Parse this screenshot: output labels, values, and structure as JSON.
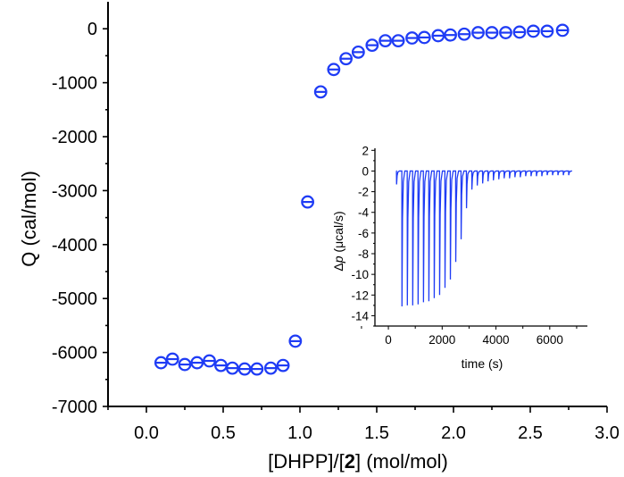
{
  "chart_data": [
    {
      "type": "scatter",
      "xlabel": "[DHPP]/[2] (mol/mol)",
      "xlabel_parts": [
        "[DHPP]/[",
        "2",
        "] (mol/mol)"
      ],
      "ylabel": "Q (cal/mol)",
      "xlim": [
        -0.25,
        3.0
      ],
      "ylim": [
        -7000,
        500
      ],
      "xticks": [
        "0.0",
        "0.5",
        "1.0",
        "1.5",
        "2.0",
        "2.5",
        "3.0"
      ],
      "yticks": [
        "0",
        "-1000",
        "-2000",
        "-3000",
        "-4000",
        "-5000",
        "-6000",
        "-7000"
      ],
      "marker": "circle-with-bar",
      "color": "#1f3cf5",
      "x": [
        0.095,
        0.17,
        0.25,
        0.33,
        0.41,
        0.485,
        0.56,
        0.64,
        0.72,
        0.81,
        0.89,
        0.97,
        1.05,
        1.135,
        1.22,
        1.3,
        1.38,
        1.47,
        1.556,
        1.64,
        1.73,
        1.81,
        1.9,
        1.98,
        2.07,
        2.16,
        2.25,
        2.34,
        2.43,
        2.52,
        2.61,
        2.71
      ],
      "y": [
        -6190,
        -6123,
        -6223,
        -6190,
        -6156,
        -6240,
        -6290,
        -6306,
        -6306,
        -6290,
        -6240,
        -5790,
        -3210,
        -1170,
        -755,
        -555,
        -433,
        -305,
        -222,
        -222,
        -171,
        -161,
        -128,
        -116,
        -100,
        -72,
        -72,
        -72,
        -62,
        -45,
        -45,
        -28
      ]
    },
    {
      "type": "line",
      "xlabel": "time (s)",
      "ylabel_parts": [
        "Δ",
        "p",
        " (μcal/s)"
      ],
      "ylabel": "Δp (μcal/s)",
      "xlim": [
        -500,
        7400
      ],
      "ylim": [
        -15,
        2.2
      ],
      "xticks": [
        "0",
        "2000",
        "4000",
        "6000"
      ],
      "yticks": [
        "2",
        "0",
        "-2",
        "-4",
        "-6",
        "-8",
        "-10",
        "-12",
        "-14"
      ],
      "color": "#1f3cf5",
      "injection_times": [
        300,
        500,
        700,
        900,
        1100,
        1300,
        1500,
        1700,
        1900,
        2100,
        2300,
        2500,
        2700,
        2900,
        3100,
        3300,
        3500,
        3700,
        3900,
        4100,
        4300,
        4500,
        4700,
        4900,
        5100,
        5300,
        5500,
        5700,
        5900,
        6100,
        6300,
        6500,
        6700
      ],
      "peak_minima": [
        -1.3,
        -13.1,
        -13.0,
        -13.0,
        -12.9,
        -12.7,
        -12.6,
        -12.3,
        -12.0,
        -11.3,
        -10.5,
        -8.8,
        -6.6,
        -3.6,
        -1.8,
        -1.4,
        -1.2,
        -1.0,
        -0.9,
        -0.8,
        -0.7,
        -0.7,
        -0.6,
        -0.6,
        -0.5,
        -0.5,
        -0.5,
        -0.5,
        -0.4,
        -0.4,
        -0.4,
        -0.4,
        -0.4
      ]
    }
  ]
}
